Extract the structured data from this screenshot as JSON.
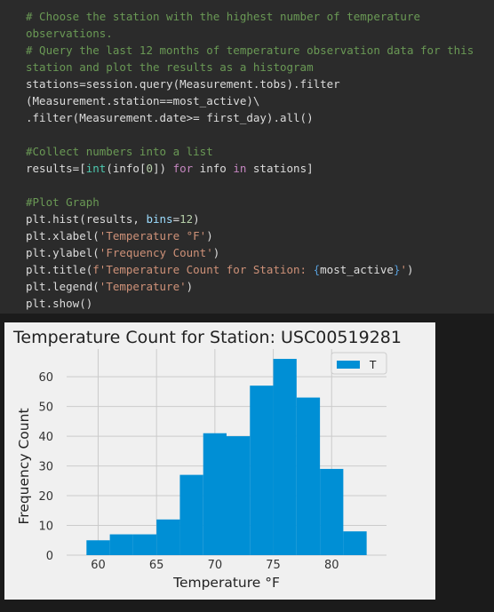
{
  "code": {
    "comment1": "# Choose the station with the highest number of temperature",
    "comment1b": "observations.",
    "comment2": "# Query the last 12 months of temperature observation data for this",
    "comment2b": "station and plot the results as a histogram",
    "q1": "stations=session.query(Measurement.tobs).filter",
    "q2": "(Measurement.station==most_active)\\",
    "q3": ".filter(Measurement.date>= first_day).all()",
    "comment3": "#Collect numbers into a list",
    "r_a": "results=[",
    "r_int": "int",
    "r_b": "(info[",
    "r_zero": "0",
    "r_c": "]) ",
    "r_for": "for",
    "r_d": " info ",
    "r_in": "in",
    "r_e": " stations]",
    "comment4": "#Plot Graph",
    "h_a": "plt.hist(results, ",
    "h_bins": "bins",
    "h_eq": "=",
    "h_12": "12",
    "h_end": ")",
    "xl_a": "plt.xlabel(",
    "xl_s": "'Temperature °F'",
    "xl_end": ")",
    "yl_a": "plt.ylabel(",
    "yl_s": "'Frequency Count'",
    "yl_end": ")",
    "t_a": "plt.title(",
    "t_s": "f'Temperature Count for Station: ",
    "t_ob": "{",
    "t_var": "most_active",
    "t_cb": "}",
    "t_q": "'",
    "t_end": ")",
    "lg_a": "plt.legend(",
    "lg_s": "'Temperature'",
    "lg_end": ")",
    "show": "plt.show()"
  },
  "chart_data": {
    "type": "bar",
    "title": "Temperature Count for Station: USC00519281",
    "xlabel": "Temperature °F",
    "ylabel": "Frequency Count",
    "legend": [
      "T"
    ],
    "legend_position": "top-right",
    "bin_edges": [
      59,
      61,
      63,
      65,
      67,
      69,
      71,
      73,
      75,
      77,
      79,
      81,
      83
    ],
    "values": [
      5,
      7,
      7,
      12,
      27,
      41,
      40,
      57,
      66,
      53,
      29,
      8
    ],
    "xlim": [
      57.3,
      84.7
    ],
    "ylim": [
      0,
      69.3
    ],
    "xticks": [
      60,
      65,
      70,
      75,
      80
    ],
    "yticks": [
      0,
      10,
      20,
      30,
      40,
      50,
      60
    ],
    "grid": true,
    "color": "#008fd5",
    "background": "#f0f0f0"
  },
  "colors": {
    "code_bg": "#2b2b2b",
    "page_bg": "#1b1b1b",
    "comment": "#6a9955",
    "string": "#ce9178"
  }
}
